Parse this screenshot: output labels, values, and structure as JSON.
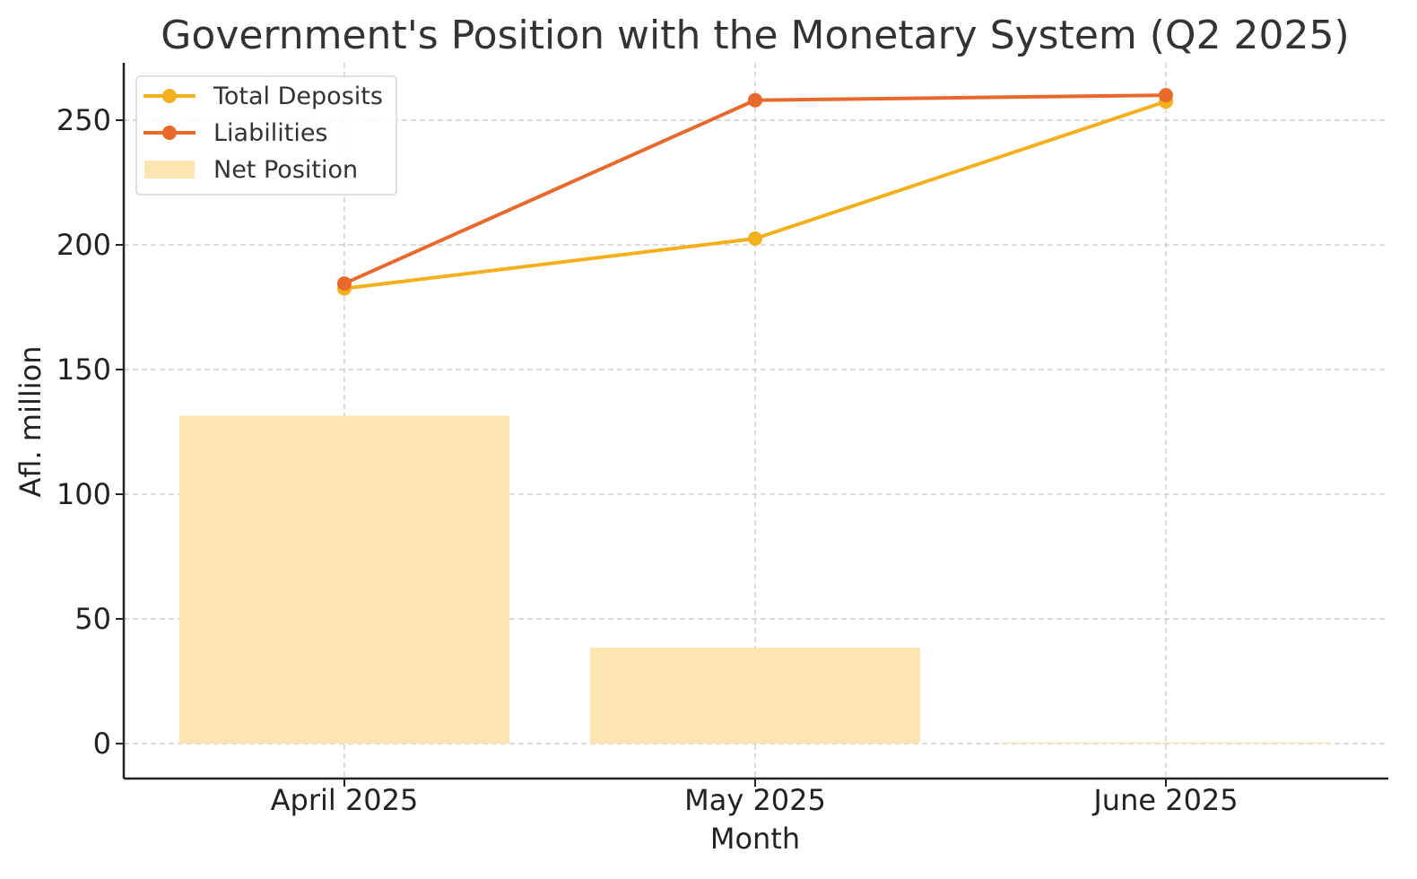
{
  "colors": {
    "deposits": "#F4B01C",
    "liabilities": "#E8692C",
    "net": "#FDE5B2"
  },
  "chart_data": {
    "type": "line",
    "title": "Government's Position with the Monetary System (Q2 2025)",
    "xlabel": "Month",
    "ylabel": "Afl. million",
    "categories": [
      "April 2025",
      "May 2025",
      "June 2025"
    ],
    "ylim": [
      -14,
      273
    ],
    "yticks": [
      0,
      50,
      100,
      150,
      200,
      250
    ],
    "grid": true,
    "legend_position": "top-left",
    "series": [
      {
        "name": "Total Deposits",
        "kind": "line",
        "values": [
          182.5,
          202.5,
          257.5
        ]
      },
      {
        "name": "Liabilities",
        "kind": "line",
        "values": [
          184.5,
          258,
          260
        ]
      },
      {
        "name": "Net Position",
        "kind": "bar",
        "values": [
          131.5,
          38.5,
          0.5
        ]
      }
    ]
  }
}
